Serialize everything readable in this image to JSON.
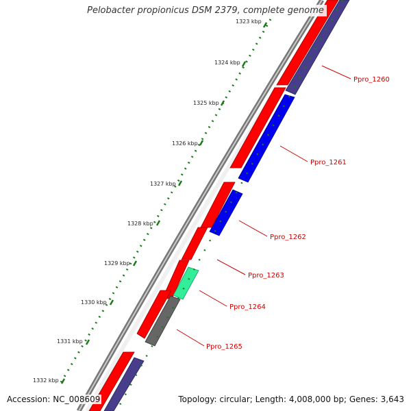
{
  "header": {
    "title": "Pelobacter propionicus DSM 2379, complete genome"
  },
  "footer": {
    "accession": "Accession: NC_008609",
    "summary": "Topology: circular; Length: 4,008,000 bp; Genes: 3,643"
  },
  "scale": {
    "ticks": [
      "1323 kbp",
      "1324 kbp",
      "1325 kbp",
      "1326 kbp",
      "1327 kbp",
      "1328 kbp",
      "1329 kbp",
      "1330 kbp",
      "1331 kbp",
      "1332 kbp"
    ]
  },
  "genes": [
    {
      "id": "Ppro_1260"
    },
    {
      "id": "Ppro_1261"
    },
    {
      "id": "Ppro_1262"
    },
    {
      "id": "Ppro_1263"
    },
    {
      "id": "Ppro_1264"
    },
    {
      "id": "Ppro_1265"
    }
  ],
  "colors": {
    "cds": "#ff0000",
    "forward": "#0000ee",
    "reverse": "#483d8b",
    "highlight": "#33ee99",
    "gray_feature": "#666666",
    "label": "#cc0000",
    "tick": "#1a7a1a",
    "backbone": "#888888"
  }
}
